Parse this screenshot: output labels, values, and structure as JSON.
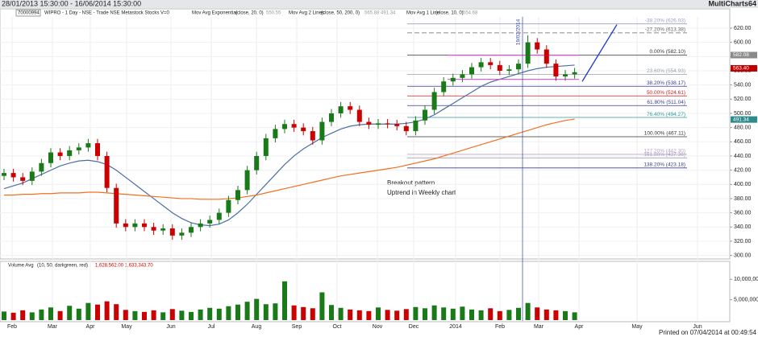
{
  "chart_data": {
    "type": "candlestick",
    "header": {
      "range": "28/01/2013 15:30:00 - 16/06/2014 15:30:00",
      "app": "MultiCharts64"
    },
    "toolbar": {
      "symbol_box": "70000994",
      "symbol": "WIPRO - 1 Day - NSE - Trade NSE Metastock Stocks V=0",
      "ind1": "Mov Avg Exponential",
      "ind1_params": "(close, 20, 0)",
      "ind1_value": "550.55",
      "ind2": "Mov Avg 2 Lines",
      "ind2_params": "(close, 50, 200, 0)",
      "ind2_values": "565.88  491.34",
      "ind3": "Mov Avg 1 Line",
      "ind3_params": "(close, 10, 0)",
      "ind3_value": "554.68"
    },
    "footer": "Printed on 07/04/2014 at 00:49:54",
    "x_labels": [
      "Feb",
      "Mar",
      "Apr",
      "May",
      "Jun",
      "Jul",
      "Aug",
      "Sep",
      "Oct",
      "Nov",
      "Dec",
      "2014",
      "Feb",
      "Mar",
      "Apr",
      "May",
      "Jun"
    ],
    "up_color": "#1a7a1a",
    "down_color": "#cc0000",
    "open": [
      412,
      416,
      410,
      405,
      418,
      430,
      445,
      440,
      448,
      452,
      458,
      440,
      395,
      345,
      340,
      345,
      340,
      335,
      338,
      328,
      332,
      340,
      345,
      350,
      360,
      378,
      392,
      420,
      440,
      465,
      478,
      485,
      480,
      475,
      462,
      488,
      500,
      510,
      505,
      488,
      484,
      486,
      485,
      482,
      475,
      490,
      505,
      530,
      545,
      550,
      555,
      565,
      572,
      568,
      560,
      562,
      570,
      600,
      590,
      570,
      552,
      555
    ],
    "high": [
      422,
      422,
      416,
      424,
      436,
      451,
      451,
      454,
      458,
      464,
      464,
      446,
      401,
      351,
      351,
      351,
      346,
      344,
      344,
      338,
      346,
      351,
      356,
      366,
      384,
      398,
      426,
      446,
      471,
      484,
      491,
      491,
      486,
      481,
      494,
      506,
      516,
      516,
      511,
      494,
      492,
      492,
      491,
      488,
      496,
      511,
      536,
      551,
      556,
      561,
      571,
      578,
      578,
      574,
      568,
      576,
      610,
      606,
      596,
      576,
      561,
      564
    ],
    "low": [
      406,
      404,
      399,
      399,
      412,
      424,
      434,
      434,
      442,
      446,
      434,
      389,
      339,
      334,
      334,
      334,
      329,
      329,
      322,
      322,
      326,
      334,
      339,
      344,
      354,
      372,
      386,
      414,
      434,
      459,
      472,
      474,
      469,
      456,
      456,
      482,
      494,
      499,
      482,
      478,
      478,
      479,
      476,
      469,
      469,
      484,
      499,
      524,
      539,
      544,
      549,
      559,
      562,
      554,
      554,
      556,
      564,
      584,
      564,
      546,
      546,
      549
    ],
    "close": [
      416,
      410,
      405,
      418,
      430,
      445,
      440,
      448,
      452,
      458,
      440,
      395,
      345,
      340,
      345,
      340,
      335,
      338,
      328,
      332,
      340,
      345,
      350,
      360,
      378,
      392,
      420,
      440,
      465,
      478,
      485,
      480,
      475,
      462,
      488,
      500,
      510,
      505,
      488,
      484,
      486,
      485,
      482,
      475,
      490,
      505,
      530,
      545,
      550,
      555,
      565,
      572,
      568,
      560,
      562,
      570,
      600,
      590,
      570,
      552,
      555,
      558
    ],
    "series": [
      {
        "color": "#4a6fa5",
        "values": [
          394,
          398,
          402,
          408,
          414,
          420,
          426,
          430,
          433,
          434,
          432,
          428,
          420,
          410,
          400,
          390,
          380,
          370,
          360,
          352,
          346,
          343,
          342,
          344,
          350,
          360,
          372,
          386,
          400,
          414,
          428,
          440,
          450,
          458,
          466,
          472,
          478,
          482,
          484,
          485,
          485,
          485,
          485,
          486,
          488,
          492,
          498,
          506,
          514,
          522,
          530,
          538,
          544,
          548,
          552,
          556,
          560,
          563,
          565,
          566,
          567,
          568
        ]
      },
      {
        "color": "#f07020",
        "values": [
          385,
          385,
          386,
          386,
          387,
          387,
          388,
          388,
          388,
          389,
          389,
          388,
          387,
          386,
          385,
          384,
          383,
          382,
          381,
          380,
          380,
          379,
          379,
          379,
          380,
          381,
          383,
          385,
          388,
          391,
          394,
          397,
          400,
          403,
          406,
          409,
          412,
          414,
          416,
          418,
          420,
          422,
          424,
          427,
          430,
          433,
          436,
          440,
          444,
          448,
          452,
          456,
          460,
          464,
          468,
          472,
          476,
          480,
          484,
          487,
          490,
          492
        ]
      }
    ],
    "ylim": [
      295,
      637
    ],
    "yticks": [
      {
        "value": 300,
        "label": "300.00"
      },
      {
        "value": 320,
        "label": "320.00"
      },
      {
        "value": 340,
        "label": "340.00"
      },
      {
        "value": 360,
        "label": "360.00"
      },
      {
        "value": 380,
        "label": "380.00"
      },
      {
        "value": 400,
        "label": "400.00"
      },
      {
        "value": 420,
        "label": "420.00"
      },
      {
        "value": 440,
        "label": "440.00"
      },
      {
        "value": 460,
        "label": "460.00"
      },
      {
        "value": 480,
        "label": "480.00"
      },
      {
        "value": 500,
        "label": "500.00"
      },
      {
        "value": 520,
        "label": "520.00"
      },
      {
        "value": 540,
        "label": "540.00"
      },
      {
        "value": 560,
        "label": "560.00"
      },
      {
        "value": 580,
        "label": "580.00"
      },
      {
        "value": 600,
        "label": "600.00"
      },
      {
        "value": 620,
        "label": "620.00"
      }
    ],
    "price_tags": [
      {
        "value": 582.08,
        "label": "582.08",
        "color": "#8a8a8a"
      },
      {
        "value": 563.4,
        "label": "563.40",
        "color": "#c00000"
      },
      {
        "value": 491.34,
        "label": "491.34",
        "color": "#2e8b8b"
      }
    ],
    "fib_levels": [
      {
        "value": 626.03,
        "label": "-38.20% (626.03)",
        "color": "#9aa0c0"
      },
      {
        "value": 613.38,
        "label": "-27.20% (613.38)",
        "color": "#666",
        "dash": true
      },
      {
        "value": 582.1,
        "label": "0.00% (582.10)",
        "color": "#333"
      },
      {
        "value": 554.93,
        "label": "23.60% (554.93)",
        "color": "#9aa0a8"
      },
      {
        "value": 538.17,
        "label": "38.20% (538.17)",
        "color": "#3a3a8a"
      },
      {
        "value": 524.61,
        "label": "50.00% (524.61)",
        "color": "#cc2020"
      },
      {
        "value": 511.04,
        "label": "61.80% (511.04)",
        "color": "#3a3a8a"
      },
      {
        "value": 494.27,
        "label": "76.40% (494.27)",
        "color": "#2e9a9a"
      },
      {
        "value": 467.11,
        "label": "100.00% (467.11)",
        "color": "#333"
      },
      {
        "value": 442.3,
        "label": "127.20% (442.30)",
        "color": "#c0a0c0"
      },
      {
        "value": 437.36,
        "label": "161.80% (437.36)",
        "color": "#a0a0c0"
      },
      {
        "value": 423.18,
        "label": "138.20% (423.18)",
        "color": "#3a3a8a"
      }
    ],
    "date_marker": "19/02/2014",
    "resistance_box": {
      "top": 582,
      "bottom": 548,
      "color": "#e040e0"
    },
    "trendline": {
      "from": 545,
      "to": 625,
      "color": "#1a3ad0"
    },
    "annotation": [
      "Breakout pattern",
      "Uptrend in Weekly chart"
    ],
    "volume": {
      "title": "Volume Avg",
      "params": "(10, 50, darkgreen, red)",
      "values_text": "1,628,562.00  1,633,343.70",
      "values": [
        2100000,
        1800000,
        2400000,
        1900000,
        2600000,
        3100000,
        2200000,
        3500000,
        2800000,
        4200000,
        3800000,
        4600000,
        3900000,
        2500000,
        2200000,
        2000000,
        2400000,
        1900000,
        2700000,
        2300000,
        2000000,
        2600000,
        3000000,
        2800000,
        3400000,
        3800000,
        4500000,
        5200000,
        3900000,
        4100000,
        9500000,
        3600000,
        3200000,
        2900000,
        6800000,
        3700000,
        3000000,
        2600000,
        2400000,
        2200000,
        3100000,
        2500000,
        2300000,
        2700000,
        3200000,
        2900000,
        3600000,
        3100000,
        2800000,
        3300000,
        2600000,
        2400000,
        2900000,
        2200000,
        2500000,
        3000000,
        4200000,
        3100000,
        2600000,
        2400000,
        2200000,
        1900000
      ],
      "ylim": [
        0,
        14000000
      ],
      "yticks": [
        {
          "value": 5000000,
          "label": "5,000,000"
        },
        {
          "value": 10000000,
          "label": "10,000,000"
        }
      ]
    }
  }
}
